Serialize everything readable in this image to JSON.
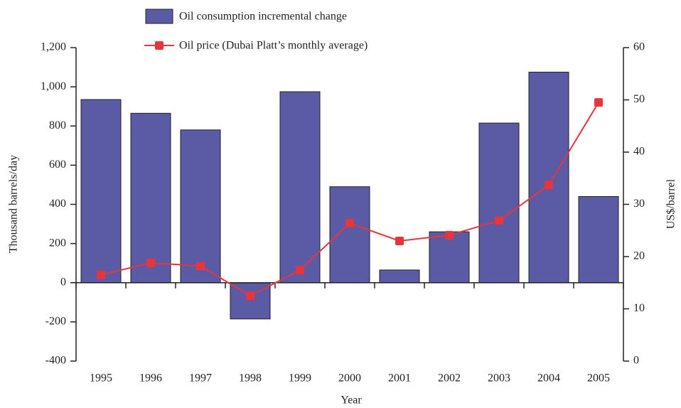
{
  "chart_data": {
    "type": "bar_line",
    "categories": [
      "1995",
      "1996",
      "1997",
      "1998",
      "1999",
      "2000",
      "2001",
      "2002",
      "2003",
      "2004",
      "2005"
    ],
    "series": [
      {
        "name": "Oil consumption incremental change",
        "color": "#5b5aa5",
        "type": "bar",
        "values": [
          935,
          865,
          780,
          -185,
          975,
          490,
          65,
          260,
          815,
          1075,
          440
        ]
      },
      {
        "name": "Oil price (Dubai Platt’s monthly average)",
        "color": "#e8353b",
        "type": "line",
        "axis": "y2",
        "values": [
          16.5,
          18.8,
          18.2,
          12.5,
          17.4,
          26.4,
          23.0,
          24.1,
          26.9,
          33.7,
          49.5
        ]
      }
    ],
    "xlabel": "Year",
    "ylabel": "Thousand barrels/day",
    "y2label": "US$/barrel",
    "ylim": [
      -400,
      1200
    ],
    "yticks": [
      -400,
      -200,
      0,
      200,
      400,
      600,
      800,
      {
        "value": 1000,
        "label": "1,000"
      },
      {
        "value": 1200,
        "label": "1,200"
      }
    ],
    "y2lim": [
      0,
      60
    ],
    "y2ticks": [
      0,
      10,
      20,
      30,
      40,
      50,
      60
    ],
    "legend": "top"
  }
}
